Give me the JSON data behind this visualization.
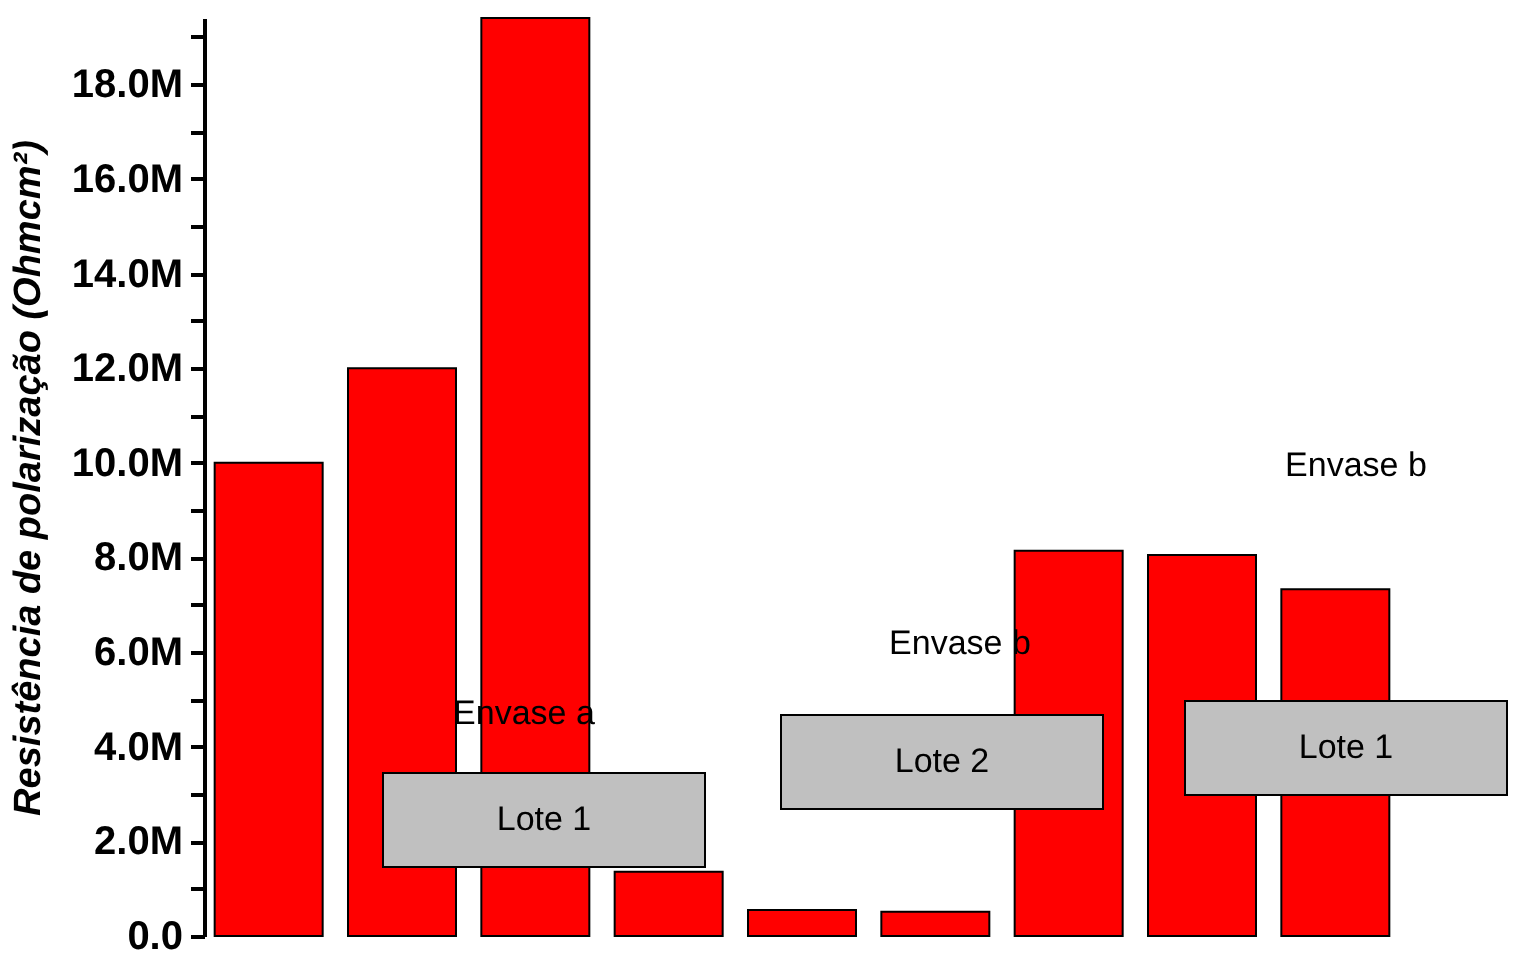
{
  "chart_data": {
    "type": "bar",
    "ylabel": "Resistência de polarização (Ohmcm²)",
    "categories": [
      null,
      null,
      null,
      null,
      null,
      null,
      null,
      null,
      null
    ],
    "values": [
      10000000,
      12000000,
      19400000,
      1360000,
      550000,
      510000,
      8140000,
      8050000,
      7330000
    ],
    "color": "#ff0000",
    "ylim": [
      0,
      19400000
    ],
    "yticks": [
      {
        "value": 0,
        "label": "0.0"
      },
      {
        "value": 1000000,
        "label": null
      },
      {
        "value": 2000000,
        "label": "2.0M"
      },
      {
        "value": 3000000,
        "label": null
      },
      {
        "value": 4000000,
        "label": "4.0M"
      },
      {
        "value": 5000000,
        "label": null
      },
      {
        "value": 6000000,
        "label": "6.0M"
      },
      {
        "value": 7000000,
        "label": null
      },
      {
        "value": 8000000,
        "label": "8.0M"
      },
      {
        "value": 9000000,
        "label": null
      },
      {
        "value": 10000000,
        "label": "10.0M"
      },
      {
        "value": 11000000,
        "label": null
      },
      {
        "value": 12000000,
        "label": "12.0M"
      },
      {
        "value": 13000000,
        "label": null
      },
      {
        "value": 14000000,
        "label": "14.0M"
      },
      {
        "value": 15000000,
        "label": null
      },
      {
        "value": 16000000,
        "label": "16.0M"
      },
      {
        "value": 17000000,
        "label": null
      },
      {
        "value": 18000000,
        "label": "18.0M"
      },
      {
        "value": 19000000,
        "label": null
      }
    ],
    "annotations": [
      "Envase a",
      "Lote 1",
      "Envase b",
      "Lote 2",
      "Envase b",
      "Lote 1"
    ],
    "grid": false
  }
}
